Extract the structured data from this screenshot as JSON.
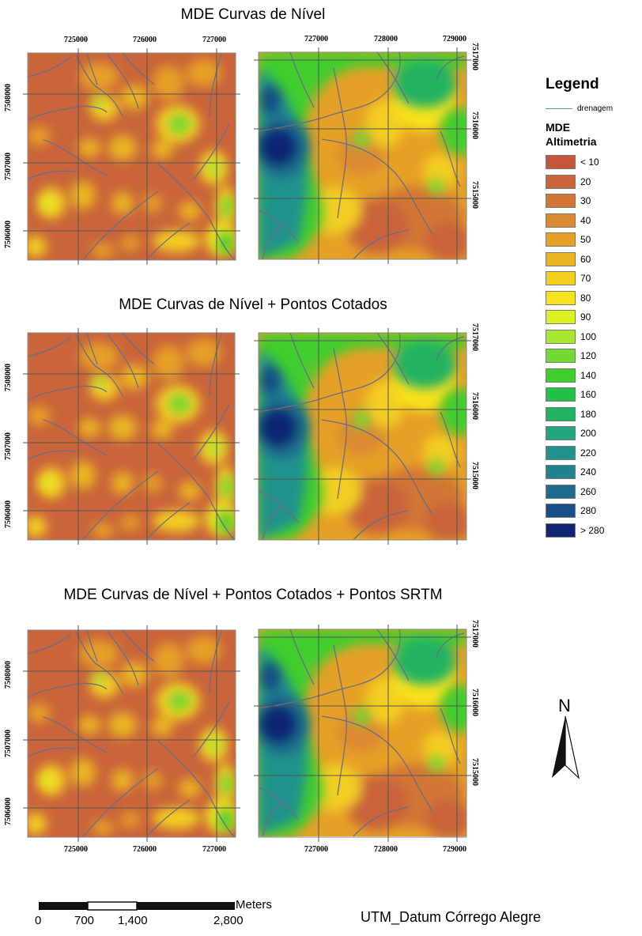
{
  "sections": [
    {
      "title": "MDE Curvas de Nível"
    },
    {
      "title": "MDE Curvas de Nível + Pontos Cotados"
    },
    {
      "title": "MDE Curvas de Nível + Pontos Cotados + Pontos SRTM"
    }
  ],
  "left_map": {
    "x_ticks": [
      "725000",
      "726000",
      "727000"
    ],
    "y_ticks": [
      "7508000",
      "7507000",
      "7506000"
    ]
  },
  "right_map": {
    "x_ticks": [
      "727000",
      "728000",
      "729000"
    ],
    "y_ticks": [
      "7517000",
      "7516000",
      "7515000"
    ]
  },
  "legend": {
    "title": "Legend",
    "drainage_label": "drenagem",
    "drainage_color": "#5d95b5",
    "layer_name": "MDE",
    "field_name": "Altimetria",
    "classes": [
      {
        "label": "< 10",
        "color": "#c4573a"
      },
      {
        "label": "20",
        "color": "#c9643b"
      },
      {
        "label": "30",
        "color": "#d27636"
      },
      {
        "label": "40",
        "color": "#dc8a30"
      },
      {
        "label": "50",
        "color": "#e5a027"
      },
      {
        "label": "60",
        "color": "#eab524"
      },
      {
        "label": "70",
        "color": "#f3cd20"
      },
      {
        "label": "80",
        "color": "#f8e21e"
      },
      {
        "label": "90",
        "color": "#dcf224"
      },
      {
        "label": "100",
        "color": "#a7e631"
      },
      {
        "label": "120",
        "color": "#73d932"
      },
      {
        "label": "140",
        "color": "#3fce2e"
      },
      {
        "label": "160",
        "color": "#22c045"
      },
      {
        "label": "180",
        "color": "#23b262"
      },
      {
        "label": "200",
        "color": "#23a47e"
      },
      {
        "label": "220",
        "color": "#23928c"
      },
      {
        "label": "240",
        "color": "#20828f"
      },
      {
        "label": "260",
        "color": "#1d6c8e"
      },
      {
        "label": "280",
        "color": "#174f86"
      },
      {
        "label": "> 280",
        "color": "#0f2673"
      }
    ]
  },
  "north_arrow": {
    "letter": "N"
  },
  "scale_bar": {
    "labels": [
      "0",
      "700",
      "1,400",
      "2,800"
    ],
    "unit": "Meters"
  },
  "datum": "UTM_Datum Córrego Alegre"
}
